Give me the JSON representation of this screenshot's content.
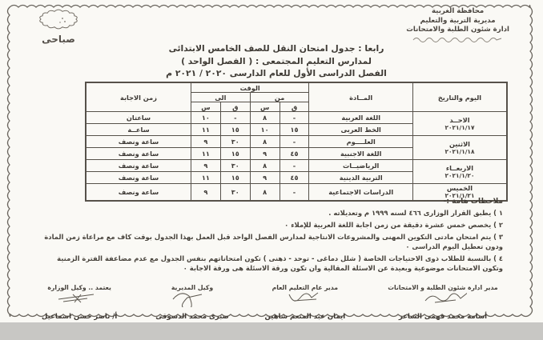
{
  "page": {
    "shift_label": "صباحى"
  },
  "letterhead": [
    "محافظة الغربية",
    "مديرية التربية والتعليم",
    "ادارة شئون الطلبة والامتحانات"
  ],
  "titles": [
    "رابعا : جدول امتحان النقل للصف الخامس الابتدائى",
    "لمدارس التعليم المجتمعى : ( الفصل الواحد )",
    "الفصل الدراسى الأول للعام الدارسى ٢٠٢٠ / ٢٠٢١ م"
  ],
  "table": {
    "header": {
      "day_date": "اليوم والتاريخ",
      "subject": "المــادة",
      "time": "الوقت",
      "from": "من",
      "to": "الى",
      "minutes": "ق",
      "hours": "س",
      "duration": "زمن الاجابة"
    },
    "rows": [
      {
        "day": "الاحــد",
        "date": "٢٠٢١/١/١٧",
        "span": 2,
        "subject": "اللغة العربية",
        "from_q": "-",
        "from_s": "٨",
        "to_q": "-",
        "to_s": "١٠",
        "duration": "ساعتان"
      },
      {
        "subject": "الخط العربى",
        "from_q": "١٥",
        "from_s": "١٠",
        "to_q": "١٥",
        "to_s": "١١",
        "duration": "ساعــة"
      },
      {
        "day": "الاثنين",
        "date": "٢٠٢١/١/١٨",
        "span": 2,
        "subject": "العلــــوم",
        "from_q": "-",
        "from_s": "٨",
        "to_q": "٣٠",
        "to_s": "٩",
        "duration": "ساعة ونصف"
      },
      {
        "subject": "اللغة الاجنبية",
        "from_q": "٤٥",
        "from_s": "٩",
        "to_q": "١٥",
        "to_s": "١١",
        "duration": "ساعة ونصف"
      },
      {
        "day": "الاربعــاء",
        "date": "٢٠٢١/١/٢٠",
        "span": 2,
        "subject": "الرياضيــات",
        "from_q": "-",
        "from_s": "٨",
        "to_q": "٣٠",
        "to_s": "٩",
        "duration": "ساعة ونصف"
      },
      {
        "subject": "التربية الدينية",
        "from_q": "٤٥",
        "from_s": "٩",
        "to_q": "١٥",
        "to_s": "١١",
        "duration": "ساعة ونصف"
      },
      {
        "day": "الخميس",
        "date": "٢٠٢١/١/٢١",
        "span": 1,
        "subject": "الدراسات الاجتماعية",
        "from_q": "-",
        "from_s": "٨",
        "to_q": "٣٠",
        "to_s": "٩",
        "duration": "ساعة ونصف"
      }
    ]
  },
  "notes": {
    "heading": "ملاحظات هامة :-",
    "items": [
      "١ ) يطبق القرار الوزارى ٤٦٦ لسنه ١٩٩٩ م وتعديلاته .",
      "٢ ) يخصص خمس عشرة دقيقة من زمن اجابة اللغة العربية للإملاء ٠",
      "٣ ) يتم امتحان مادتى التكوين المهنى والمشروعات الانتاجية لمدارس الفصل الواحد قبل العمل بهذا الجدول بوقت كاف مع مراعاة زمن المادة ودون تعطيل اليوم الدراسى ٠",
      "٤ ) بالنسبة للطلاب ذوى الاحتياجات الخاصة ( شلل دماغى - توحد - ذهنى ) تكون امتحاناتهم بنفس الجدول مع عدم مضاعفة الفترة الزمنية وتكون الامتحانات موضوعية وبعيدة عن الاسئلة المقالية وان تكون ورقة الاسئلة هى ورقة الاجابة ٠"
    ]
  },
  "signatures": [
    {
      "title": "مدير ادارة شئون الطلبة و الامتحانات",
      "name": "أسامة محمد فهمى الشاعر"
    },
    {
      "title": "مدير عام التعليم العام",
      "name": "ايمان عبد المنعم شاهين"
    },
    {
      "title": "وكيل المديرية",
      "name": "صبرى محمد الدسوقى"
    },
    {
      "title": "يعتمد .. وكيل الوزارة",
      "name": "أ/ ناصر حسن اسماعيل"
    }
  ],
  "colors": {
    "paper": "#faf9f5",
    "ink": "#403c36",
    "border": "#56514a",
    "background_strip": "#c8c7c4"
  }
}
